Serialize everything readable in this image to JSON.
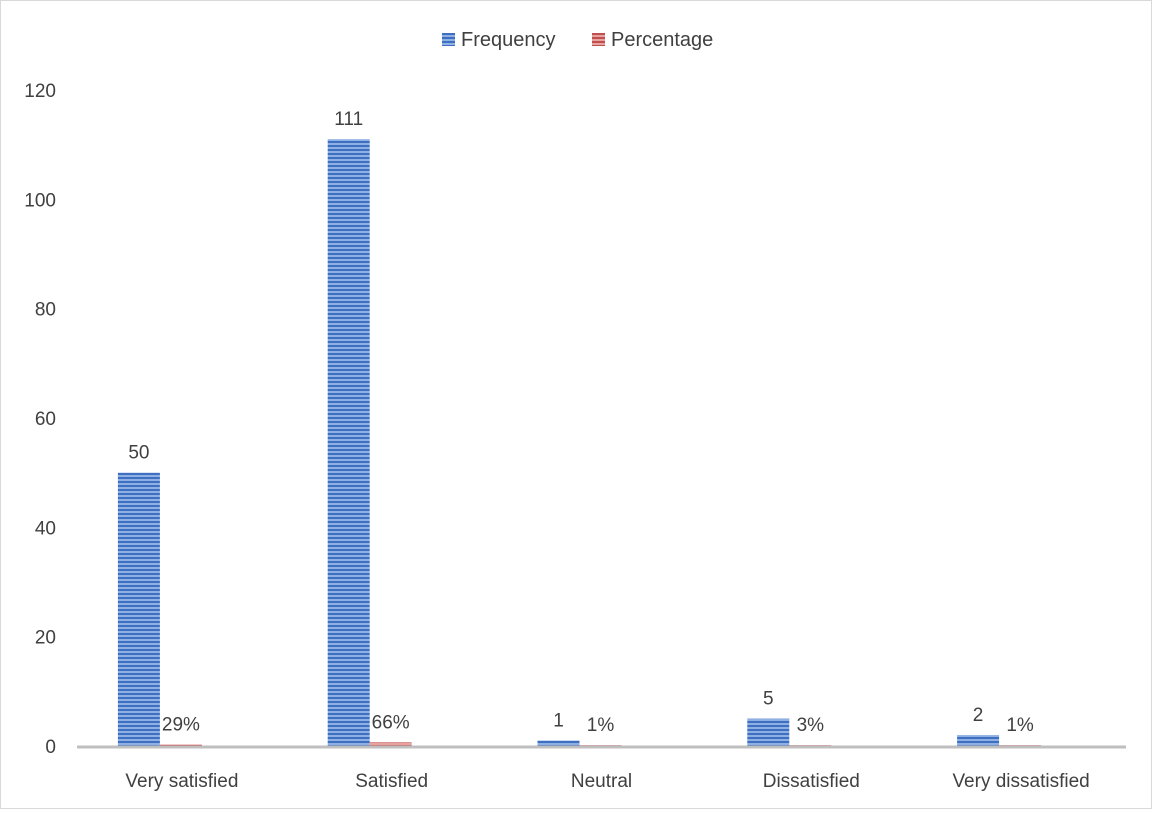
{
  "chart_data": {
    "type": "bar",
    "title": "",
    "xlabel": "",
    "ylabel": "",
    "categories": [
      "Very satisfied",
      "Satisfied",
      "Neutral",
      "Dissatisfied",
      "Very dissatisfied"
    ],
    "series": [
      {
        "name": "Frequency",
        "values": [
          50,
          111,
          1,
          5,
          2
        ],
        "labels": [
          "50",
          "111",
          "1",
          "5",
          "2"
        ],
        "color": "#4472c4"
      },
      {
        "name": "Percentage",
        "values": [
          0.29,
          0.66,
          0.01,
          0.03,
          0.01
        ],
        "labels": [
          "29%",
          "66%",
          "1%",
          "3%",
          "1%"
        ],
        "color": "#c0504d"
      }
    ],
    "ylim": [
      0,
      120
    ],
    "yticks": [
      0,
      20,
      40,
      60,
      80,
      100,
      120
    ],
    "grid": false,
    "legend_position": "top-center"
  }
}
